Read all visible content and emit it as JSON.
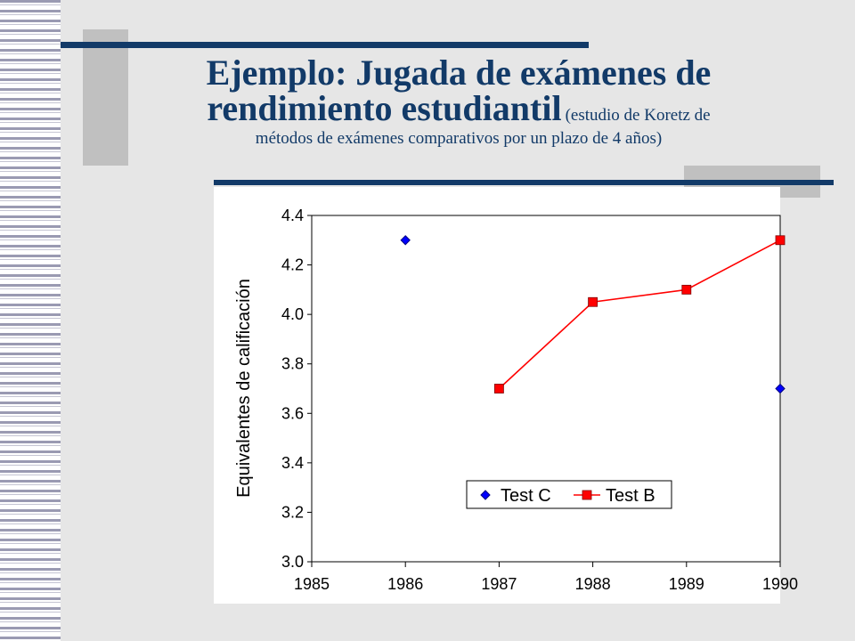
{
  "slide": {
    "title_line1": "Ejemplo: Jugada de exámenes de",
    "title_line2": "rendimiento estudiantil",
    "title_note_part1": "(estudio de Koretz de",
    "title_note_part2": "métodos de exámenes comparativos por un plazo de 4 años)",
    "accent_color": "#123a68"
  },
  "chart_data": {
    "type": "scatter",
    "xlabel": "",
    "ylabel": "Equivalentes de calificación",
    "xlim": [
      1985,
      1990
    ],
    "ylim": [
      3.0,
      4.4
    ],
    "x_ticks": [
      "1985",
      "1986",
      "1987",
      "1988",
      "1989",
      "1990"
    ],
    "y_ticks": [
      "3.0",
      "3.2",
      "3.4",
      "3.6",
      "3.8",
      "4.0",
      "4.2",
      "4.4"
    ],
    "grid": false,
    "legend_position": "bottom-center",
    "series": [
      {
        "name": "Test C",
        "marker": "diamond",
        "color": "#0000ff",
        "line": false,
        "points": [
          {
            "x": 1986,
            "y": 4.3
          },
          {
            "x": 1990,
            "y": 3.7
          }
        ]
      },
      {
        "name": "Test B",
        "marker": "square",
        "color": "#ff0000",
        "line": true,
        "points": [
          {
            "x": 1987,
            "y": 3.7
          },
          {
            "x": 1988,
            "y": 4.05
          },
          {
            "x": 1989,
            "y": 4.1
          },
          {
            "x": 1990,
            "y": 4.3
          }
        ]
      }
    ]
  }
}
